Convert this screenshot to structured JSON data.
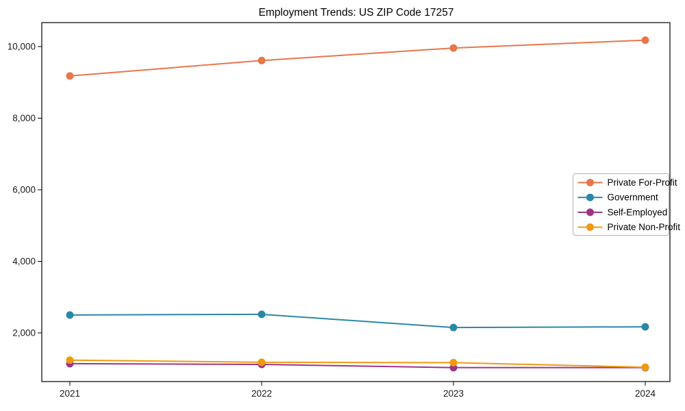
{
  "chart_data": {
    "type": "line",
    "title": "Employment Trends: US ZIP Code 17257",
    "categories": [
      "2021",
      "2022",
      "2023",
      "2024"
    ],
    "series": [
      {
        "name": "Private For-Profit",
        "color": "#E8764B",
        "values": [
          9180,
          9610,
          9960,
          10180
        ]
      },
      {
        "name": "Government",
        "color": "#2B87A8",
        "values": [
          2500,
          2520,
          2150,
          2170
        ]
      },
      {
        "name": "Self-Employed",
        "color": "#9C3587",
        "values": [
          1140,
          1120,
          1030,
          1030
        ]
      },
      {
        "name": "Private Non-Profit",
        "color": "#F09A10",
        "values": [
          1240,
          1180,
          1170,
          1040
        ]
      }
    ],
    "xlabel": "",
    "ylabel": "",
    "ylim": [
      640,
      10670
    ],
    "yticks": [
      2000,
      4000,
      6000,
      8000,
      10000
    ],
    "ytick_labels": [
      "2,000",
      "4,000",
      "6,000",
      "8,000",
      "10,000"
    ],
    "grid": false,
    "legend": {
      "position": "right-center",
      "border_color": "#b3b3b3",
      "background": "#ffffff"
    }
  },
  "style": {
    "axis_color": "#000000",
    "background": "#ffffff",
    "line_width": 2,
    "marker_radius": 5.5
  }
}
